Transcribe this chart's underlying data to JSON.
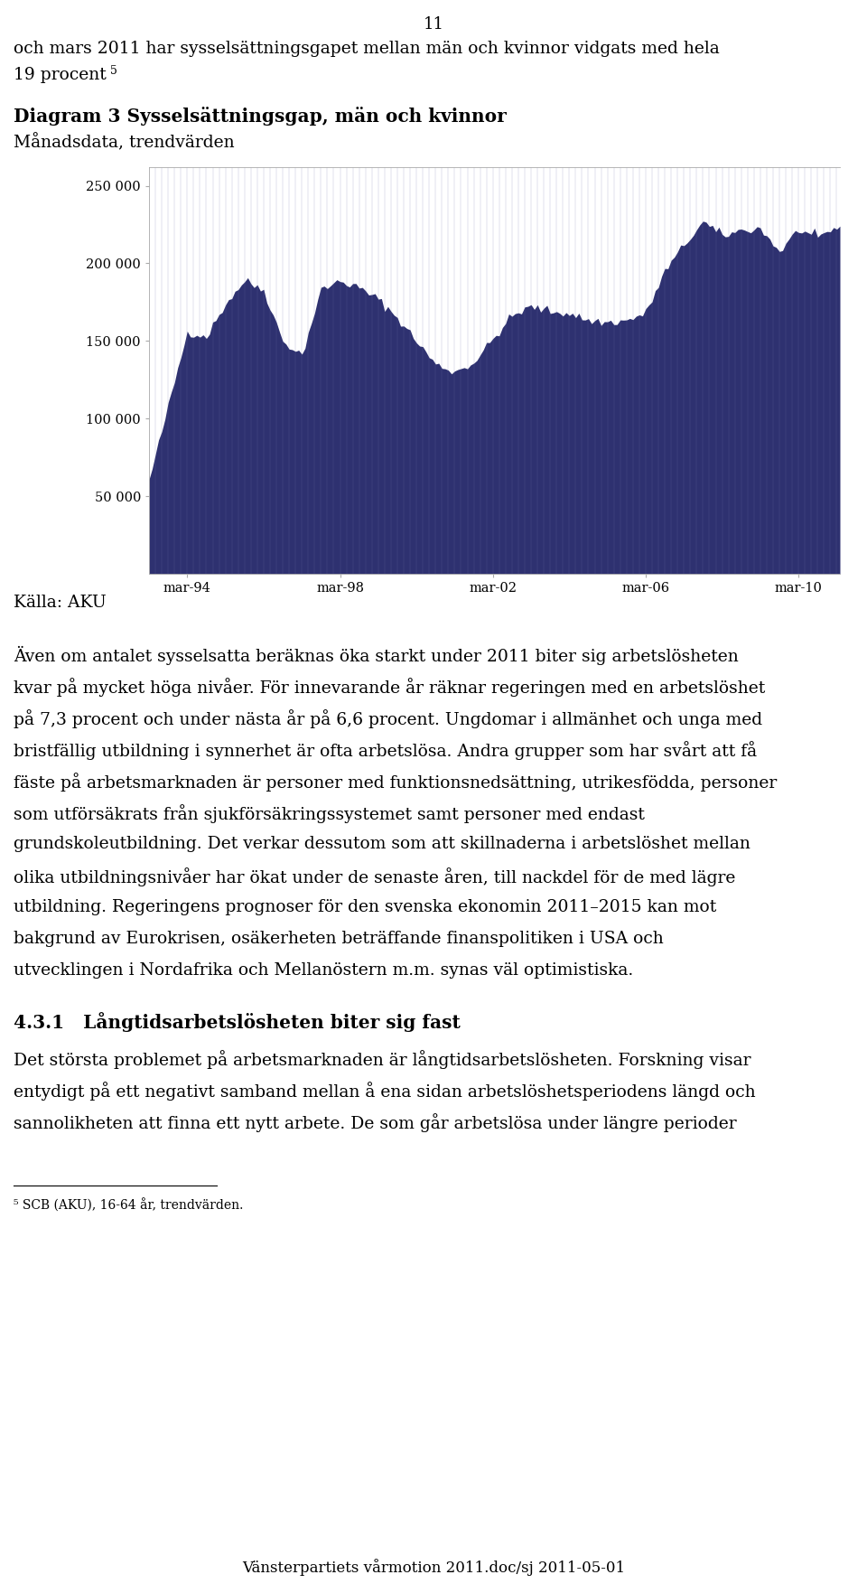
{
  "page_number": "11",
  "heading_line1": "och mars 2011 har sysselsättningsgapet mellan män och kvinnor vidgats med hela",
  "heading_line2": "19 procent",
  "heading_superscript": "5",
  "chart_title": "Diagram 3 Sysselsättningsgap, män och kvinnor",
  "chart_subtitle": "Månadsdata, trendvärden",
  "source_label": "Källa: AKU",
  "yticks": [
    50000,
    100000,
    150000,
    200000,
    250000
  ],
  "ytick_labels": [
    "50 000",
    "100 000",
    "150 000",
    "200 000",
    "250 000"
  ],
  "xtick_labels": [
    "mar-94",
    "mar-98",
    "mar-02",
    "mar-06",
    "mar-10"
  ],
  "ymin": 0,
  "ymax": 262000,
  "fill_color": "#2e3170",
  "body_text_1a": "Även om antalet sysselsatta beräknas öka starkt under 2011 biter sig arbetslösheten",
  "body_text_1b": "kvar på mycket höga nivåer. För innevarande år räknar regeringen med en arbetslöshet",
  "body_text_1c": "på 7,3 procent och under nästa år på 6,6 procent. Ungdomar i allmänhet och unga med",
  "body_text_1d": "bristfällig utbildning i synnerhet är ofta arbetslösa. Andra grupper som har svårt att få",
  "body_text_1e": "fäste på arbetsmarknaden är personer med funktionsnedsättning, utrikesfödda, personer",
  "body_text_1f": "som utförsäkrats från sjukförsäkringssystemet samt personer med endast",
  "body_text_1g": "grundskoleutbildning. Det verkar dessutom som att skillnaderna i arbetslöshet mellan",
  "body_text_1h": "olika utbildningsnivåer har ökat under de senaste åren, till nackdel för de med lägre",
  "body_text_1i": "utbildning. Regeringens prognoser för den svenska ekonomin 2011–2015 kan mot",
  "body_text_1j": "bakgrund av Eurokrisen, osäkerheten beträffande finanspolitiken i USA och",
  "body_text_1k": "utvecklingen i Nordafrika och Mellanöstern m.m. synas väl optimistiska.",
  "section_heading": "4.3.1   Långtidsarbetslösheten biter sig fast",
  "body_text_2a": "Det största problemet på arbetsmarknaden är långtidsarbetslösheten. Forskning visar",
  "body_text_2b": "entydigt på ett negativt samband mellan å ena sidan arbetslöshetsperiodens längd och",
  "body_text_2c": "sannolikheten att finna ett nytt arbete. De som går arbetslösa under längre perioder",
  "footnote": "⁵ SCB (AKU), 16-64 år, trendvärden.",
  "footer_text": "Vänsterpartiets vårmotion 2011.doc/sj 2011-05-01",
  "background_color": "#ffffff",
  "text_color": "#000000",
  "body_fontsize": 13.5,
  "title_fontsize": 14.5,
  "subtitle_fontsize": 13.5
}
